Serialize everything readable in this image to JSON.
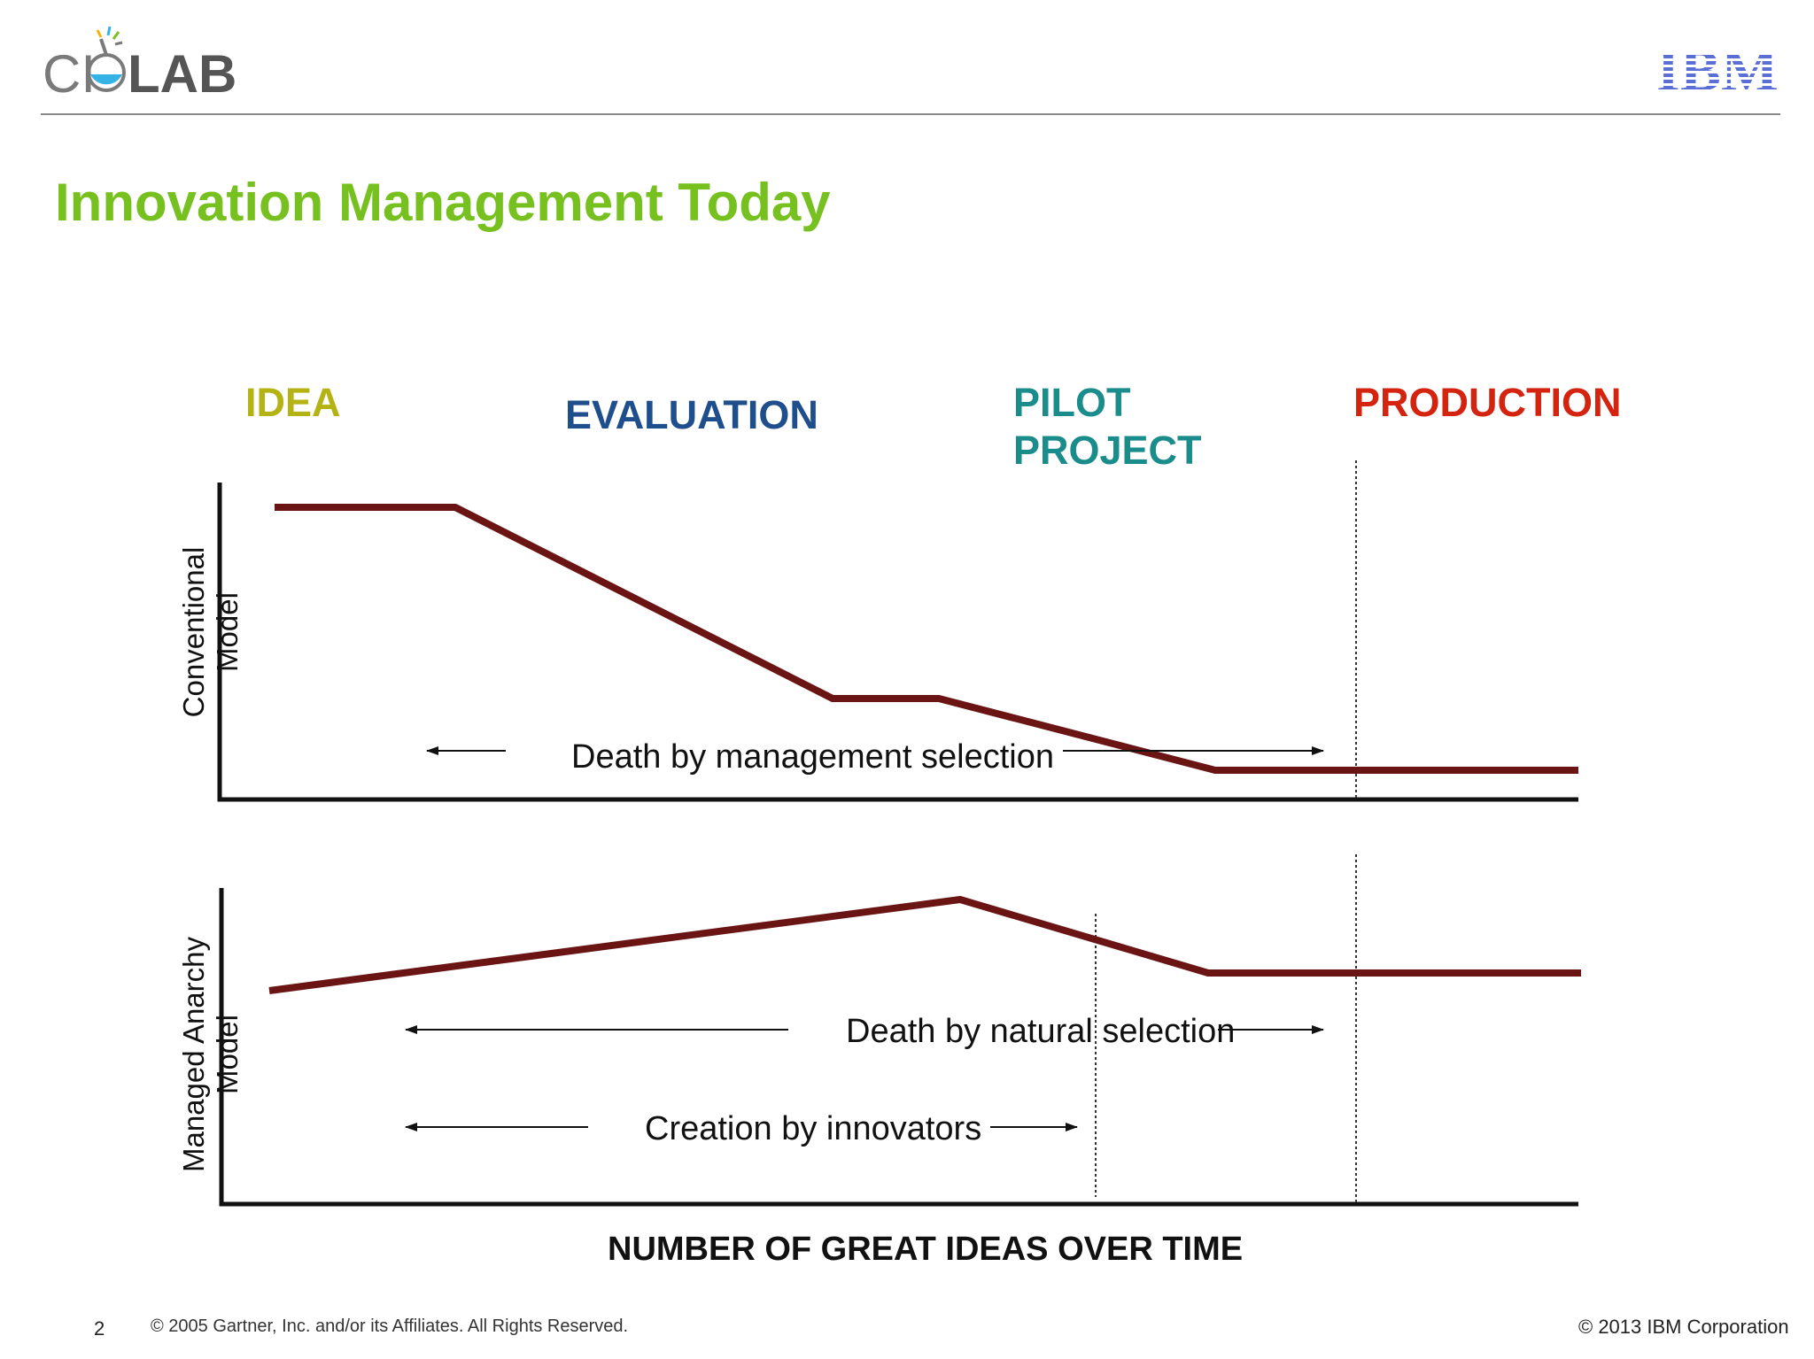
{
  "header": {
    "logo_cio_text": "CI",
    "logo_lab_text": "LAB",
    "ibm_logo_text": "IBM"
  },
  "title": "Innovation Management Today",
  "stages": {
    "idea": "IDEA",
    "evaluation": "EVALUATION",
    "pilot_line1": "PILOT",
    "pilot_line2": "PROJECT",
    "production": "PRODUCTION"
  },
  "colors": {
    "title": "#76c11f",
    "idea": "#b5b214",
    "evaluation": "#1f4e8c",
    "pilot": "#1a8c8c",
    "production": "#d4230f",
    "curve": "#6b1414",
    "ibm": "#5a6fd6"
  },
  "axis_labels": {
    "top_line1": "Conventional",
    "top_line2": "Model",
    "bottom_line1": "Managed Anarchy",
    "bottom_line2": "Model",
    "x": "NUMBER OF GREAT IDEAS OVER TIME"
  },
  "annotations": {
    "top": "Death by management selection",
    "bottom_1": "Death by natural selection",
    "bottom_2": "Creation by innovators"
  },
  "footer": {
    "page_number": "2",
    "left": "© 2005 Gartner, Inc. and/or its Affiliates. All Rights Reserved.",
    "right": "© 2013 IBM Corporation"
  }
}
